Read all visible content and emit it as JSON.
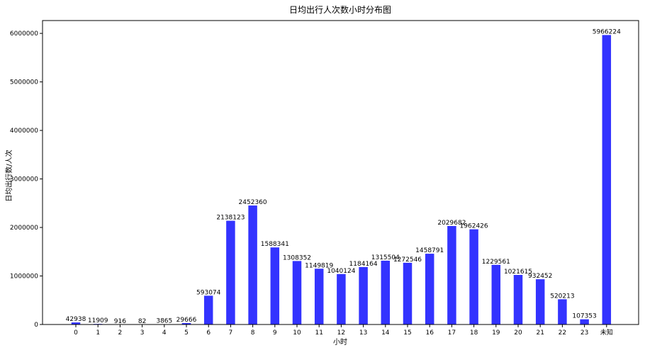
{
  "chart_data": {
    "type": "bar",
    "title": "日均出行人次数小时分布图",
    "xlabel": "小时",
    "ylabel": "日均出行数/人次",
    "categories": [
      "0",
      "1",
      "2",
      "3",
      "4",
      "5",
      "6",
      "7",
      "8",
      "9",
      "10",
      "11",
      "12",
      "13",
      "14",
      "15",
      "16",
      "17",
      "18",
      "19",
      "20",
      "21",
      "22",
      "23",
      "未知"
    ],
    "values": [
      42938,
      11909,
      916,
      82,
      3865,
      29666,
      593074,
      2138123,
      2452360,
      1588341,
      1308352,
      1149819,
      1040124,
      1184164,
      1315504,
      1272546,
      1458791,
      2029682,
      1962426,
      1229561,
      1021615,
      932452,
      520213,
      107353,
      5966224
    ],
    "data_labels": [
      "42938",
      "11909",
      "916",
      "82",
      "3865",
      "29666",
      "593074",
      "2138123",
      "2452360",
      "1588341",
      "1308352",
      "1149819",
      "1040124",
      "1184164",
      "1315504",
      "1272546",
      "1458791",
      "2029682",
      "1962426",
      "1229561",
      "1021615",
      "932452",
      "520213",
      "107353",
      "5966224"
    ],
    "yticks": [
      0,
      1000000,
      2000000,
      3000000,
      4000000,
      5000000,
      6000000
    ],
    "ytick_labels": [
      "0",
      "1000000",
      "2000000",
      "3000000",
      "4000000",
      "5000000",
      "6000000"
    ],
    "ylim": [
      0,
      6264535
    ],
    "bar_color": "#3333ff",
    "grid": false,
    "legend": "none"
  }
}
